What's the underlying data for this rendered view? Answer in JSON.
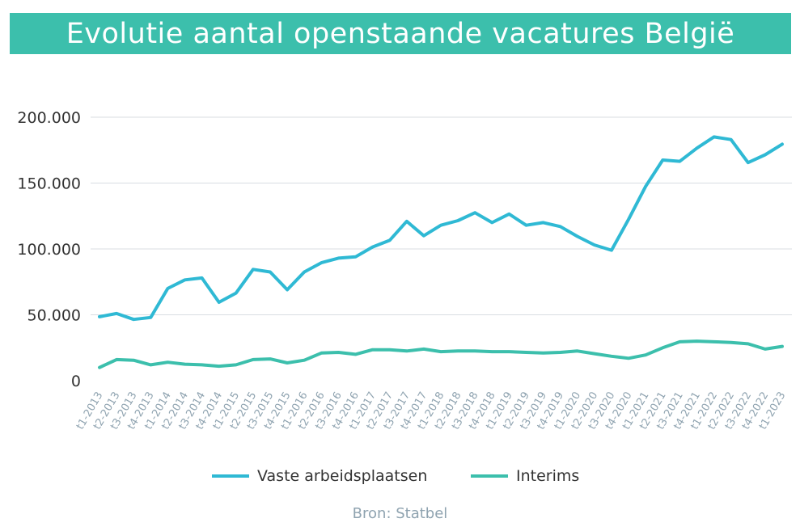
{
  "chart_data": {
    "type": "line",
    "title": "Evolutie aantal openstaande vacatures België",
    "source": "Bron: Statbel",
    "xlabel": "",
    "ylabel": "",
    "ylim": [
      0,
      200000
    ],
    "y_ticks": [
      {
        "value": 0,
        "label": "0"
      },
      {
        "value": 50000,
        "label": "50.000"
      },
      {
        "value": 100000,
        "label": "100.000"
      },
      {
        "value": 150000,
        "label": "150.000"
      },
      {
        "value": 200000,
        "label": "200.000"
      }
    ],
    "grid": true,
    "legend_position": "bottom",
    "categories": [
      "t1-2013",
      "t2-2013",
      "t3-2013",
      "t4-2013",
      "t1-2014",
      "t2-2014",
      "t3-2014",
      "t4-2014",
      "t1-2015",
      "t2-2015",
      "t3-2015",
      "t4-2015",
      "t1-2016",
      "t2-2016",
      "t3-2016",
      "t4-2016",
      "t1-2017",
      "t2-2017",
      "t3-2017",
      "t4-2017",
      "t1-2018",
      "t2-2018",
      "t3-2018",
      "t4-2018",
      "t1-2019",
      "t2-2019",
      "t3-2019",
      "t4-2019",
      "t1-2020",
      "t2-2020",
      "t3-2020",
      "t4-2020",
      "t1-2021",
      "t2-2021",
      "t3-2021",
      "t4-2021",
      "t1-2022",
      "t2-2022",
      "t3-2022",
      "t4-2022",
      "t1-2023"
    ],
    "series": [
      {
        "name": "Vaste arbeidsplaatsen",
        "color": "#2fb9d4",
        "values": [
          48500,
          51000,
          46500,
          48000,
          70000,
          76500,
          78000,
          59500,
          66500,
          84500,
          82500,
          69000,
          82500,
          89500,
          93000,
          94000,
          101500,
          106500,
          121000,
          110000,
          118000,
          121500,
          127500,
          120000,
          126500,
          118000,
          120000,
          117000,
          109500,
          103000,
          99000,
          122500,
          147500,
          167500,
          166500,
          176500,
          185000,
          183000,
          165500,
          171500,
          179500
        ]
      },
      {
        "name": "Interims",
        "color": "#3cbfac",
        "values": [
          10000,
          16000,
          15500,
          12000,
          14000,
          12500,
          12000,
          11000,
          12000,
          16000,
          16500,
          13500,
          15500,
          21000,
          21500,
          20000,
          23500,
          23500,
          22500,
          24000,
          22000,
          22500,
          22500,
          22000,
          22000,
          21500,
          21000,
          21500,
          22500,
          20500,
          18500,
          17000,
          19500,
          25000,
          29500,
          30000,
          29500,
          29000,
          28000,
          24000,
          26000
        ]
      }
    ]
  },
  "colors": {
    "title_bar": "#3cbfac",
    "title_text": "#ffffff",
    "grid": "#d8dde2",
    "tick_y": "#333333",
    "tick_x": "#8fa3b0"
  }
}
